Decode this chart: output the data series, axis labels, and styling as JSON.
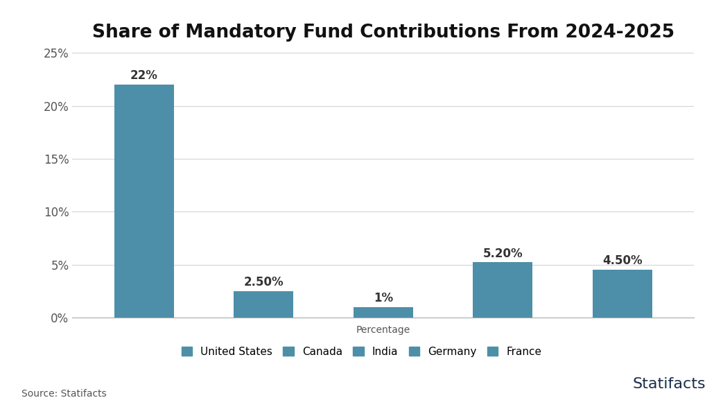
{
  "title": "Share of Mandatory Fund Contributions From 2024-2025",
  "categories": [
    "United States",
    "Canada",
    "India",
    "Germany",
    "France"
  ],
  "values": [
    22,
    2.5,
    1,
    5.2,
    4.5
  ],
  "bar_labels": [
    "22%",
    "2.50%",
    "1%",
    "5.20%",
    "4.50%"
  ],
  "bar_color": "#4d8fa8",
  "xlabel": "Percentage",
  "ylim": [
    0,
    25
  ],
  "yticks": [
    0,
    5,
    10,
    15,
    20,
    25
  ],
  "ytick_labels": [
    "0%",
    "5%",
    "10%",
    "15%",
    "20%",
    "25%"
  ],
  "source_text": "Source: Statifacts",
  "background_color": "#ffffff",
  "title_fontsize": 19,
  "label_fontsize": 12,
  "tick_fontsize": 12,
  "xlabel_fontsize": 10,
  "legend_fontsize": 11,
  "source_fontsize": 10,
  "bar_width": 0.5,
  "grid_color": "#d5d5d5",
  "statifacts_text_color": "#1a2e4a",
  "statifacts_fontsize": 16
}
